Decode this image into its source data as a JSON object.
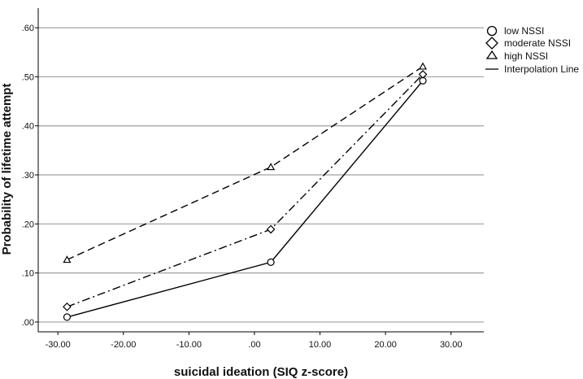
{
  "chart_data": {
    "type": "line",
    "xlabel": "suicidal ideation (SIQ z-score)",
    "ylabel": "Probability of lifetime attempt",
    "xlim": [
      -33,
      35
    ],
    "ylim": [
      -0.02,
      0.64
    ],
    "x_ticks": [
      -30,
      -20,
      -10,
      0,
      10,
      20,
      30
    ],
    "x_tick_labels": [
      "-30.00",
      "-20.00",
      "-10.00",
      ".00",
      "10.00",
      "20.00",
      "30.00"
    ],
    "y_ticks": [
      0,
      0.1,
      0.2,
      0.3,
      0.4,
      0.5,
      0.6
    ],
    "y_tick_labels": [
      ".00",
      ".10",
      ".20",
      ".30",
      ".40",
      ".50",
      ".60"
    ],
    "grid": "horizontal",
    "legend_position": "top-right",
    "series": [
      {
        "name": "low NSSI",
        "marker": "circle",
        "line": "solid",
        "x": [
          -28.6,
          2.5,
          25.7
        ],
        "y": [
          0.01,
          0.122,
          0.492
        ]
      },
      {
        "name": "moderate NSSI",
        "marker": "diamond",
        "line": "dashdot",
        "x": [
          -28.6,
          2.5,
          25.7
        ],
        "y": [
          0.031,
          0.189,
          0.505
        ]
      },
      {
        "name": "high NSSI",
        "marker": "triangle",
        "line": "dashed",
        "x": [
          -28.6,
          2.5,
          25.7
        ],
        "y": [
          0.127,
          0.316,
          0.521
        ]
      }
    ],
    "legend_extra": "Interpolation Line",
    "colors": {
      "line": "#000000",
      "grid": "#a0a0a0"
    }
  }
}
